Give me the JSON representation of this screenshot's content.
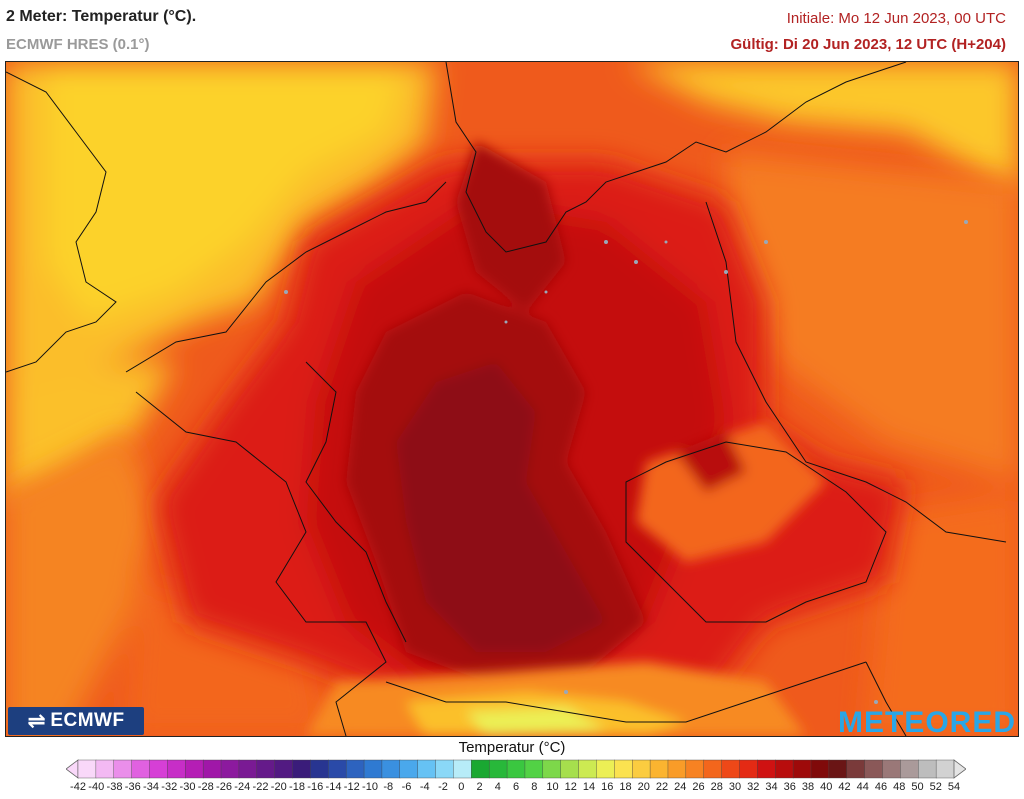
{
  "header": {
    "title": "2 Meter: Temperatur (°C).",
    "subtitle": "ECMWF HRES (0.1°)",
    "init_time": "Initiale: Mo 12 Jun 2023, 00 UTC",
    "valid_time": "Gültig: Di 20 Jun 2023, 12 UTC (H+204)"
  },
  "logos": {
    "left": "ECMWF",
    "right": "METEORED"
  },
  "legend": {
    "title": "Temperatur (°C)",
    "ticks": [
      "-42",
      "-40",
      "-38",
      "-36",
      "-34",
      "-32",
      "-30",
      "-28",
      "-26",
      "-24",
      "-22",
      "-20",
      "-18",
      "-16",
      "-14",
      "-12",
      "-10",
      "-8",
      "-6",
      "-4",
      "-2",
      "0",
      "2",
      "4",
      "6",
      "8",
      "10",
      "12",
      "14",
      "16",
      "18",
      "20",
      "22",
      "24",
      "26",
      "28",
      "30",
      "32",
      "34",
      "36",
      "38",
      "40",
      "42",
      "44",
      "46",
      "48",
      "50",
      "52",
      "54"
    ],
    "colors": [
      "#f9d8f9",
      "#f3b9f3",
      "#ea8eea",
      "#e061e0",
      "#d63fd6",
      "#c72ec7",
      "#b51eb5",
      "#a017a8",
      "#8c1a9e",
      "#7a1a94",
      "#651a8a",
      "#521a82",
      "#3a1c7a",
      "#283591",
      "#2a4aa8",
      "#2d63bf",
      "#2f7ad2",
      "#3a90e0",
      "#4aa8ec",
      "#66c2f4",
      "#8ad8f7",
      "#b7ecf8",
      "#1aa832",
      "#28b83a",
      "#3ac740",
      "#52d245",
      "#7dd84a",
      "#a6df4d",
      "#ccea52",
      "#ecef55",
      "#fbe250",
      "#fbcc40",
      "#fbb430",
      "#f99c28",
      "#f78222",
      "#f3661c",
      "#ee4818",
      "#e42a14",
      "#cf1212",
      "#b80d0d",
      "#9e0a0a",
      "#800a0a",
      "#6a1515",
      "#7a3a3a",
      "#8a5858",
      "#9a7878",
      "#aa9a9a",
      "#bdbdbd",
      "#d2d2d2"
    ]
  },
  "colors": {
    "hot_core": "#8e0f12",
    "hot": "#d21313",
    "warm": "#ef4a18",
    "mild": "#f78a22",
    "cool": "#fbc82a",
    "frame": "#222222",
    "title_red": "#b22222"
  }
}
